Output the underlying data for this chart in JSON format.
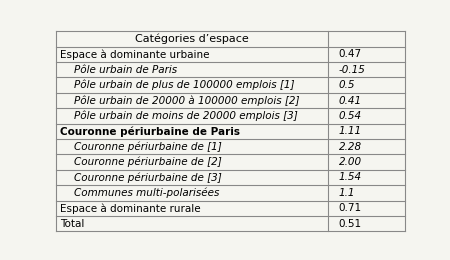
{
  "header": [
    "Catégories d’espace",
    ""
  ],
  "rows": [
    {
      "label": "Espace à dominante urbaine",
      "value": "0.47",
      "indent": 0,
      "bold": false,
      "italic": false
    },
    {
      "label": "Pôle urbain de Paris",
      "value": "-0.15",
      "indent": 1,
      "bold": false,
      "italic": true
    },
    {
      "label": "Pôle urbain de plus de 100000 emplois [1]",
      "value": "0.5",
      "indent": 1,
      "bold": false,
      "italic": true
    },
    {
      "label": "Pôle urbain de 20000 à 100000 emplois [2]",
      "value": "0.41",
      "indent": 1,
      "bold": false,
      "italic": true
    },
    {
      "label": "Pôle urbain de moins de 20000 emplois [3]",
      "value": "0.54",
      "indent": 1,
      "bold": false,
      "italic": true
    },
    {
      "label": "Couronne périurbaine de Paris",
      "value": "1.11",
      "indent": 0,
      "bold": true,
      "italic": false
    },
    {
      "label": "Couronne périurbaine de [1]",
      "value": "2.28",
      "indent": 1,
      "bold": false,
      "italic": true
    },
    {
      "label": "Couronne périurbaine de [2]",
      "value": "2.00",
      "indent": 1,
      "bold": false,
      "italic": true
    },
    {
      "label": "Couronne périurbaine de [3]",
      "value": "1.54",
      "indent": 1,
      "bold": false,
      "italic": true
    },
    {
      "label": "Communes multi-polarisées",
      "value": "1.1",
      "indent": 1,
      "bold": false,
      "italic": true
    },
    {
      "label": "Espace à dominante rurale",
      "value": "0.71",
      "indent": 0,
      "bold": false,
      "italic": false
    },
    {
      "label": "Total",
      "value": "0.51",
      "indent": 0,
      "bold": false,
      "italic": false
    }
  ],
  "bg_color": "#f5f5f0",
  "border_color": "#888888",
  "font_size": 7.5,
  "header_font_size": 8.0,
  "col_split": 0.78,
  "indent_size": 0.04
}
